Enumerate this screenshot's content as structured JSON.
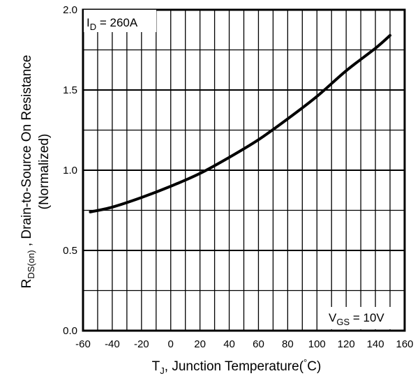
{
  "chart_data": {
    "type": "line",
    "title": "",
    "xlabel": {
      "main": "T",
      "sub": "J",
      "rest": ", Junction Temperature",
      "paren_open": "(",
      "degree": "°",
      "unit": "C",
      "paren_close": ")"
    },
    "ylabel": {
      "main": "R",
      "sub": "DS(on)",
      "rest": " , Drain-to-Source On Resistance",
      "line2": "(Normalized)"
    },
    "xlim": [
      -60,
      160
    ],
    "ylim": [
      0.0,
      2.0
    ],
    "x_ticks": [
      -60,
      -40,
      -20,
      0,
      20,
      40,
      60,
      80,
      100,
      120,
      140,
      160
    ],
    "y_ticks": [
      "0.0",
      "0.5",
      "1.0",
      "1.5",
      "2.0"
    ],
    "x_ticks_values": [
      -60,
      -40,
      -20,
      0,
      20,
      40,
      60,
      80,
      100,
      120,
      140,
      160
    ],
    "y_ticks_values": [
      0.0,
      0.5,
      1.0,
      1.5,
      2.0
    ],
    "x_minor_step": 10,
    "y_minor_step": 0.25,
    "grid": true,
    "annotations": {
      "id": {
        "main": "I",
        "sub": "D",
        "rest": " = 260A"
      },
      "vgs": {
        "main": "V",
        "sub": "GS",
        "rest": " = 10V"
      }
    },
    "series": [
      {
        "color": "#000000",
        "x": [
          -55,
          -40,
          -20,
          0,
          20,
          40,
          60,
          80,
          100,
          120,
          140,
          150
        ],
        "y": [
          0.74,
          0.77,
          0.83,
          0.9,
          0.98,
          1.08,
          1.19,
          1.32,
          1.46,
          1.62,
          1.76,
          1.84
        ]
      }
    ]
  }
}
